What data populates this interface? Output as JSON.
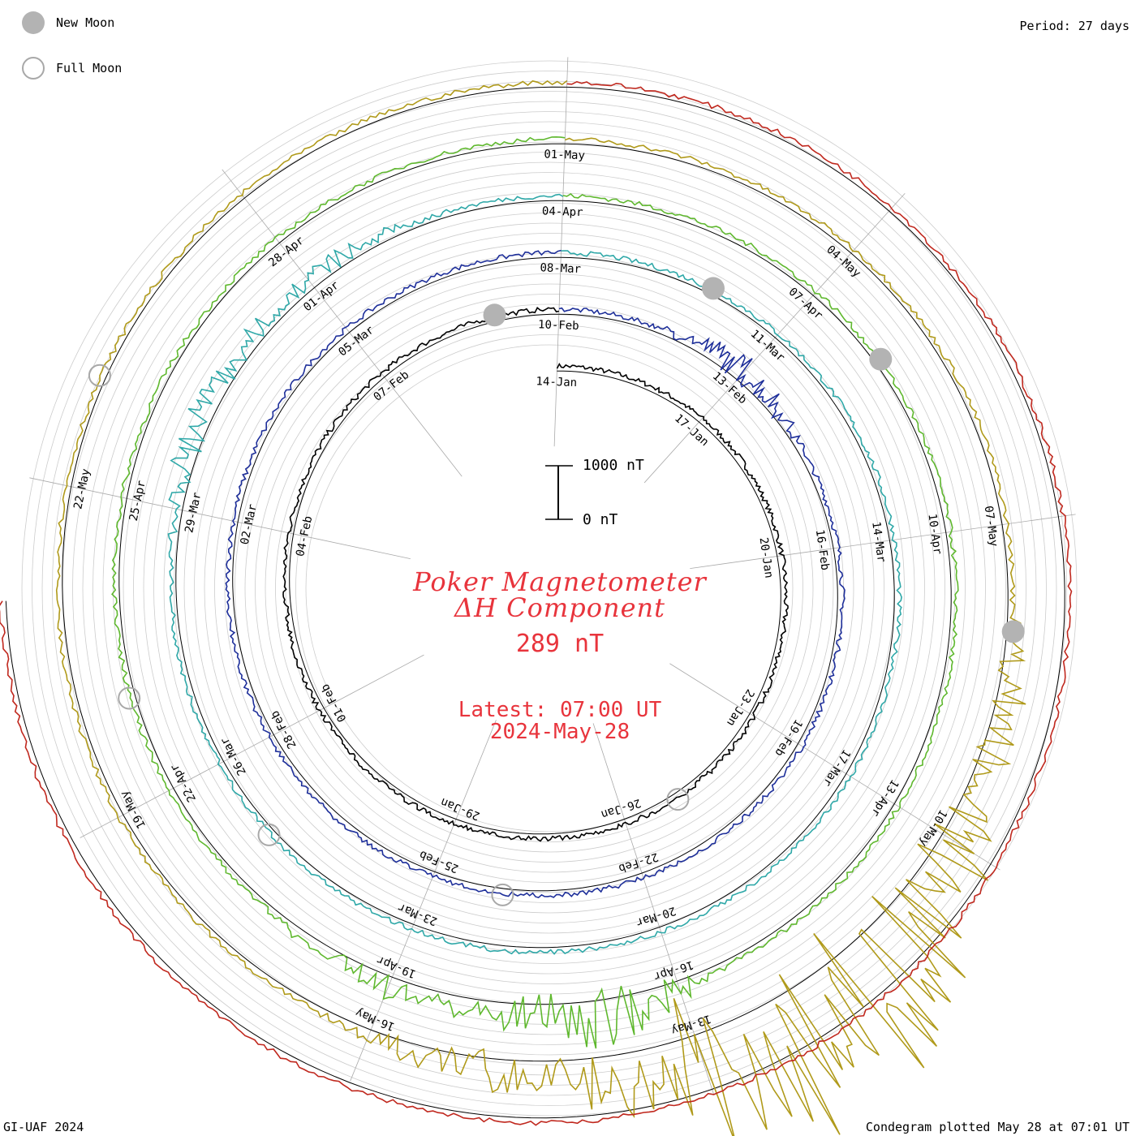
{
  "legend": {
    "new_moon_label": "New Moon",
    "full_moon_label": "Full Moon"
  },
  "period_label": "Period: 27 days",
  "footer_left": "GI-UAF 2024",
  "footer_right": "Condegram plotted May 28 at 07:01 UT",
  "scale_bar": {
    "top_label": "1000 nT",
    "bottom_label": "0 nT"
  },
  "center": {
    "title_line1": "Poker Magnetometer",
    "title_line2": "ΔH Component",
    "current_value": "289 nT",
    "latest_line1": "Latest: 07:00 UT",
    "latest_line2": "2024-May-28"
  },
  "colors": {
    "text_red": "#e8343c",
    "moon_gray": "#b3b3b3",
    "grid_gray": "#c8c8c8"
  },
  "chart_data": {
    "type": "line",
    "subtype": "spiral condegram (27-day period)",
    "title": "Poker Magnetometer ΔH Component",
    "units": "nT",
    "scale_range_nT": [
      0,
      1000
    ],
    "latest_value_nT": 289,
    "grid": true,
    "series": [
      {
        "color": "#000000",
        "labels": [
          {
            "text": "14-Jan",
            "day": 0
          },
          {
            "text": "17-Jan",
            "day": 3
          },
          {
            "text": "20-Jan",
            "day": 6
          },
          {
            "text": "23-Jan",
            "day": 9
          },
          {
            "text": "26-Jan",
            "day": 12
          },
          {
            "text": "29-Jan",
            "day": 15
          },
          {
            "text": "01-Feb",
            "day": 18
          },
          {
            "text": "04-Feb",
            "day": 21
          },
          {
            "text": "07-Feb",
            "day": 24
          }
        ]
      },
      {
        "color": "#1e2f9a",
        "labels": [
          {
            "text": "10-Feb",
            "day": 0
          },
          {
            "text": "13-Feb",
            "day": 3
          },
          {
            "text": "16-Feb",
            "day": 6
          },
          {
            "text": "19-Feb",
            "day": 9
          },
          {
            "text": "22-Feb",
            "day": 12
          },
          {
            "text": "25-Feb",
            "day": 15
          },
          {
            "text": "28-Feb",
            "day": 18
          },
          {
            "text": "02-Mar",
            "day": 21
          },
          {
            "text": "05-Mar",
            "day": 24
          }
        ]
      },
      {
        "color": "#2fa8a8",
        "labels": [
          {
            "text": "08-Mar",
            "day": 0
          },
          {
            "text": "11-Mar",
            "day": 3
          },
          {
            "text": "14-Mar",
            "day": 6
          },
          {
            "text": "17-Mar",
            "day": 9
          },
          {
            "text": "20-Mar",
            "day": 12
          },
          {
            "text": "23-Mar",
            "day": 15
          },
          {
            "text": "26-Mar",
            "day": 18
          },
          {
            "text": "29-Mar",
            "day": 21
          },
          {
            "text": "01-Apr",
            "day": 24
          }
        ]
      },
      {
        "color": "#5fb82e",
        "labels": [
          {
            "text": "04-Apr",
            "day": 0
          },
          {
            "text": "07-Apr",
            "day": 3
          },
          {
            "text": "10-Apr",
            "day": 6
          },
          {
            "text": "13-Apr",
            "day": 9
          },
          {
            "text": "16-Apr",
            "day": 12
          },
          {
            "text": "19-Apr",
            "day": 15
          },
          {
            "text": "22-Apr",
            "day": 18
          },
          {
            "text": "25-Apr",
            "day": 21
          },
          {
            "text": "28-Apr",
            "day": 24
          }
        ]
      },
      {
        "color": "#b09a1a",
        "labels": [
          {
            "text": "01-May",
            "day": 0
          },
          {
            "text": "04-May",
            "day": 3
          },
          {
            "text": "07-May",
            "day": 6
          },
          {
            "text": "10-May",
            "day": 9
          },
          {
            "text": "13-May",
            "day": 12
          },
          {
            "text": "16-May",
            "day": 15
          },
          {
            "text": "19-May",
            "day": 18
          },
          {
            "text": "22-May",
            "day": 21
          }
        ]
      },
      {
        "color": "#c0281e",
        "labels": []
      }
    ],
    "new_moons": [
      "2024-Feb-09",
      "2024-Mar-10",
      "2024-Apr-08",
      "2024-May-08"
    ],
    "full_moons": [
      "2024-Jan-25",
      "2024-Feb-24",
      "2024-Mar-25",
      "2024-Apr-23",
      "2024-May-23"
    ]
  }
}
